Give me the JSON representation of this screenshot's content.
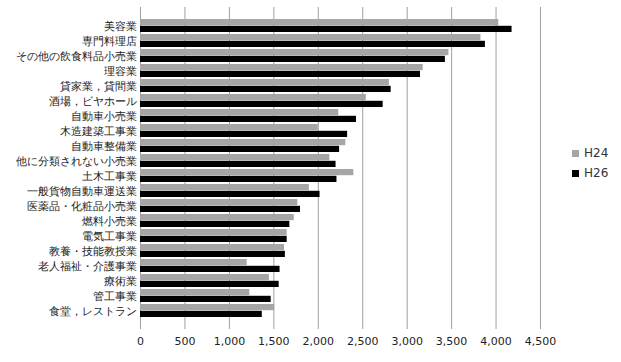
{
  "chart_data": {
    "type": "bar",
    "orientation": "horizontal",
    "categories": [
      "美容業",
      "専門料理店",
      "その他の飲食料品小売業",
      "理容業",
      "貸家業，貸間業",
      "酒場，ビヤホール",
      "自動車小売業",
      "木造建築工事業",
      "自動車整備業",
      "他に分類されない小売業",
      "土木工事業",
      "一般貨物自動車運送業",
      "医薬品・化粧品小売業",
      "燃料小売業",
      "電気工事業",
      "教養・技能教授業",
      "老人福祉・介護事業",
      "療術業",
      "管工事業",
      "食堂，レストラン"
    ],
    "series": [
      {
        "name": "H24",
        "color": "#a6a6a6",
        "values": [
          4030,
          3830,
          3470,
          3180,
          2800,
          2540,
          2230,
          2000,
          2310,
          2130,
          2400,
          1900,
          1770,
          1730,
          1650,
          1620,
          1200,
          1450,
          1230,
          1510
        ]
      },
      {
        "name": "H26",
        "color": "#000000",
        "values": [
          4180,
          3880,
          3430,
          3150,
          2820,
          2730,
          2430,
          2330,
          2240,
          2200,
          2210,
          2020,
          1800,
          1680,
          1650,
          1630,
          1570,
          1560,
          1470,
          1370
        ]
      }
    ],
    "xlim": [
      0,
      4500
    ],
    "xticks": [
      0,
      500,
      {
        "value": 1000,
        "label": "1,000"
      },
      {
        "value": 1500,
        "label": "1,500"
      },
      {
        "value": 2000,
        "label": "2,000"
      },
      {
        "value": 2500,
        "label": "2,500"
      },
      {
        "value": 3000,
        "label": "3,000"
      },
      {
        "value": 3500,
        "label": "3,500"
      },
      {
        "value": 4000,
        "label": "4,000"
      },
      {
        "value": 4500,
        "label": "4,500"
      }
    ],
    "grid": true,
    "legend": "right"
  }
}
